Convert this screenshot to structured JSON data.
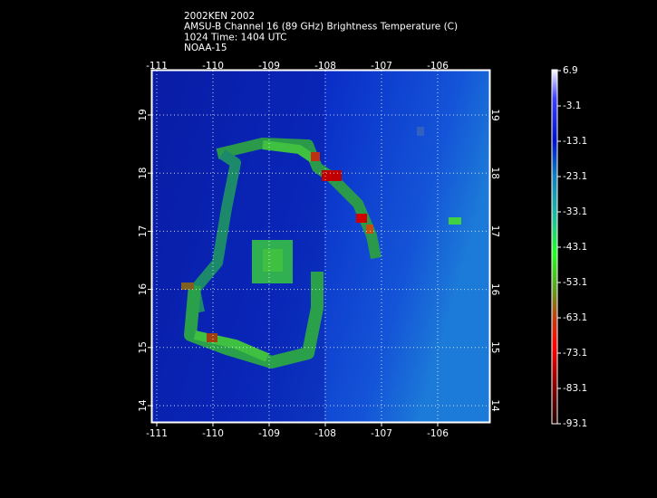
{
  "map": {
    "title_lines": [
      "2002KEN 2002",
      "AMSU-B Channel 16 (89 GHz) Brightness Temperature (C)",
      "1024 Time: 1404 UTC",
      "NOAA-15"
    ],
    "lon_ticks": [
      -111,
      -110,
      -109,
      -108,
      -107,
      -106
    ],
    "lat_ticks": [
      19,
      18,
      17,
      16,
      15,
      14
    ],
    "colorbar": {
      "ticks": [
        6.9,
        -3.1,
        -13.1,
        -23.1,
        -33.1,
        -43.1,
        -53.1,
        -63.1,
        -73.1,
        -83.1,
        -93.1
      ]
    }
  }
}
